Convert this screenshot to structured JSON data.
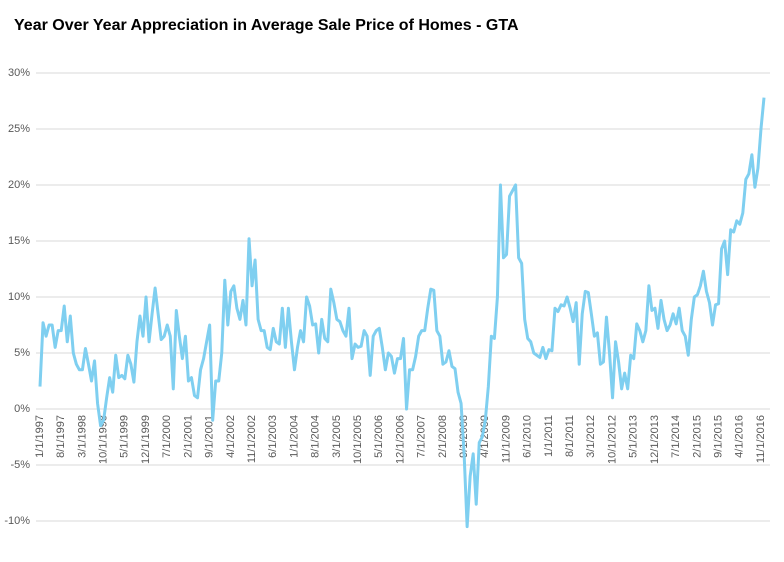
{
  "chart_data": {
    "type": "line",
    "title": "Year Over Year Appreciation in Average Sale Price of Homes - GTA",
    "categories": [
      "1/1/1997",
      null,
      null,
      null,
      null,
      null,
      null,
      "8/1/1997",
      null,
      null,
      null,
      null,
      null,
      null,
      "3/1/1998",
      null,
      null,
      null,
      null,
      null,
      null,
      "10/1/1998",
      null,
      null,
      null,
      null,
      null,
      null,
      "5/1/1999",
      null,
      null,
      null,
      null,
      null,
      null,
      "12/1/1999",
      null,
      null,
      null,
      null,
      null,
      null,
      "7/1/2000",
      null,
      null,
      null,
      null,
      null,
      null,
      "2/1/2001",
      null,
      null,
      null,
      null,
      null,
      null,
      "9/1/2001",
      null,
      null,
      null,
      null,
      null,
      null,
      "4/1/2002",
      null,
      null,
      null,
      null,
      null,
      null,
      "11/1/2002",
      null,
      null,
      null,
      null,
      null,
      null,
      "6/1/2003",
      null,
      null,
      null,
      null,
      null,
      null,
      "1/1/2004",
      null,
      null,
      null,
      null,
      null,
      null,
      "8/1/2004",
      null,
      null,
      null,
      null,
      null,
      null,
      "3/1/2005",
      null,
      null,
      null,
      null,
      null,
      null,
      "10/1/2005",
      null,
      null,
      null,
      null,
      null,
      null,
      "5/1/2006",
      null,
      null,
      null,
      null,
      null,
      null,
      "12/1/2006",
      null,
      null,
      null,
      null,
      null,
      null,
      "7/1/2007",
      null,
      null,
      null,
      null,
      null,
      null,
      "2/1/2008",
      null,
      null,
      null,
      null,
      null,
      null,
      "9/1/2008",
      null,
      null,
      null,
      null,
      null,
      null,
      "4/1/2009",
      null,
      null,
      null,
      null,
      null,
      null,
      "11/1/2009",
      null,
      null,
      null,
      null,
      null,
      null,
      "6/1/2010",
      null,
      null,
      null,
      null,
      null,
      null,
      "1/1/2011",
      null,
      null,
      null,
      null,
      null,
      null,
      "8/1/2011",
      null,
      null,
      null,
      null,
      null,
      null,
      "3/1/2012",
      null,
      null,
      null,
      null,
      null,
      null,
      "10/1/2012",
      null,
      null,
      null,
      null,
      null,
      null,
      "5/1/2013",
      null,
      null,
      null,
      null,
      null,
      null,
      "12/1/2013",
      null,
      null,
      null,
      null,
      null,
      null,
      "7/1/2014",
      null,
      null,
      null,
      null,
      null,
      null,
      "2/1/2015",
      null,
      null,
      null,
      null,
      null,
      null,
      "9/1/2015",
      null,
      null,
      null,
      null,
      null,
      null,
      "4/1/2016",
      null,
      null,
      null,
      null,
      null,
      null,
      "11/1/2016",
      null
    ],
    "values": [
      2,
      7.7,
      6.5,
      7.5,
      7.5,
      5.5,
      7,
      7,
      9.2,
      6,
      8.3,
      5,
      4,
      3.5,
      3.5,
      5.4,
      4,
      2.5,
      4.3,
      0.5,
      -1.5,
      -1,
      1,
      2.8,
      1.5,
      4.8,
      2.8,
      3,
      2.7,
      4.8,
      4,
      2.4,
      6,
      8.3,
      6.5,
      10,
      6,
      8.5,
      10.8,
      8.5,
      6.2,
      6.5,
      7.5,
      6.5,
      1.8,
      8.8,
      6.5,
      4.5,
      6.5,
      2.5,
      2.8,
      1.2,
      1,
      3.5,
      4.5,
      6,
      7.5,
      -1,
      2.5,
      2.5,
      5,
      11.5,
      7.5,
      10.5,
      11,
      9,
      8,
      9.7,
      7.5,
      15.2,
      11,
      13.3,
      8,
      7,
      7,
      5.5,
      5.3,
      7.2,
      6,
      5.8,
      9,
      5.5,
      9,
      6,
      3.5,
      5.5,
      7,
      6,
      10,
      9.2,
      7.5,
      7.6,
      5,
      8,
      6.3,
      6,
      10.7,
      9.5,
      8,
      7.8,
      7,
      6.5,
      9,
      4.5,
      5.8,
      5.5,
      5.6,
      7,
      6.5,
      3,
      6.5,
      7,
      7.2,
      5.5,
      3.5,
      5,
      4.7,
      3.2,
      4.5,
      4.5,
      6.3,
      0,
      3.5,
      3.5,
      4.7,
      6.5,
      7,
      7,
      9,
      10.7,
      10.6,
      7,
      6.5,
      4,
      4.2,
      5.2,
      3.8,
      3.6,
      1.5,
      0.5,
      -4,
      -10.5,
      -6,
      -4,
      -8.5,
      -3,
      -2.5,
      -1,
      2,
      6.5,
      6.3,
      10,
      20,
      13.5,
      13.8,
      19,
      19.5,
      20,
      13.5,
      13,
      8,
      6.3,
      6,
      5,
      4.8,
      4.6,
      5.5,
      4.5,
      5.3,
      5.2,
      9,
      8.7,
      9.3,
      9.2,
      10,
      9,
      7.8,
      9.5,
      4,
      8.5,
      10.5,
      10.4,
      8.5,
      6.5,
      6.8,
      4,
      4.2,
      8.2,
      5,
      1,
      6,
      4.2,
      1.8,
      3.2,
      1.8,
      4.8,
      4.5,
      7.6,
      7,
      6,
      7,
      11,
      8.8,
      9,
      7.2,
      9.7,
      8,
      7,
      7.5,
      8.5,
      7.6,
      9,
      7,
      6.5,
      4.8,
      8,
      10,
      10.2,
      11,
      12.3,
      10.5,
      9.5,
      7.5,
      9.3,
      9.4,
      14.3,
      15,
      12,
      16,
      15.8,
      16.8,
      16.5,
      17.5,
      20.5,
      21,
      22.7,
      19.8,
      21.5,
      25,
      27.8
    ],
    "color": "#7fcff0",
    "ylim": [
      -10,
      30
    ],
    "yticks": [
      {
        "value": -10,
        "label": "-10%"
      },
      {
        "value": -5,
        "label": "-5%"
      },
      {
        "value": 0,
        "label": "0%"
      },
      {
        "value": 5,
        "label": "5%"
      },
      {
        "value": 10,
        "label": "10%"
      },
      {
        "value": 15,
        "label": "15%"
      },
      {
        "value": 20,
        "label": "20%"
      },
      {
        "value": 25,
        "label": "25%"
      },
      {
        "value": 30,
        "label": "30%"
      }
    ],
    "grid": true
  }
}
